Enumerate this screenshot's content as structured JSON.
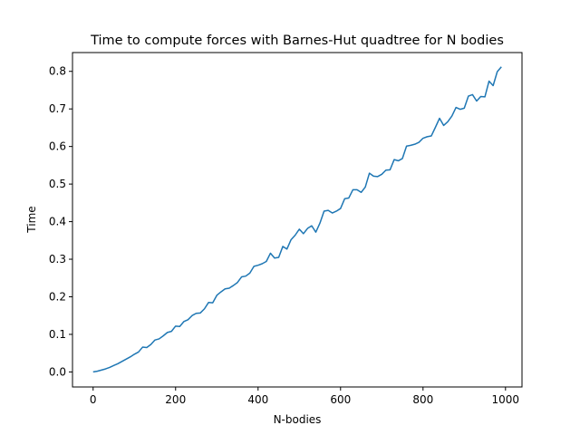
{
  "chart_data": {
    "type": "line",
    "title": "Time to compute forces with Barnes-Hut quadtree for N bodies",
    "xlabel": "N-bodies",
    "ylabel": "Time",
    "xlim": [
      -50,
      1040
    ],
    "ylim": [
      -0.04,
      0.85
    ],
    "grid": false,
    "xticks": [
      0,
      200,
      400,
      600,
      800,
      1000
    ],
    "xtick_labels": [
      "0",
      "200",
      "400",
      "600",
      "800",
      "1000"
    ],
    "yticks": [
      0.0,
      0.1,
      0.2,
      0.3,
      0.4,
      0.5,
      0.6,
      0.7,
      0.8
    ],
    "ytick_labels": [
      "0.0",
      "0.1",
      "0.2",
      "0.3",
      "0.4",
      "0.5",
      "0.6",
      "0.7",
      "0.8"
    ],
    "series": [
      {
        "name": "Time",
        "color": "#1f77b4",
        "x": [
          0,
          10,
          20,
          30,
          40,
          50,
          60,
          70,
          80,
          90,
          100,
          110,
          120,
          130,
          140,
          150,
          160,
          170,
          180,
          190,
          200,
          210,
          220,
          230,
          240,
          250,
          260,
          270,
          280,
          290,
          300,
          310,
          320,
          330,
          340,
          350,
          360,
          370,
          380,
          390,
          400,
          410,
          420,
          430,
          440,
          450,
          460,
          470,
          480,
          490,
          500,
          510,
          520,
          530,
          540,
          550,
          560,
          570,
          580,
          590,
          600,
          610,
          620,
          630,
          640,
          650,
          660,
          670,
          680,
          690,
          700,
          710,
          720,
          730,
          740,
          750,
          760,
          770,
          780,
          790,
          800,
          810,
          820,
          830,
          840,
          850,
          860,
          870,
          880,
          890,
          900,
          910,
          920,
          930,
          940,
          950,
          960,
          970,
          980,
          990
        ],
        "values": [
          0.0,
          0.002,
          0.005,
          0.008,
          0.012,
          0.017,
          0.022,
          0.028,
          0.034,
          0.04,
          0.047,
          0.053,
          0.066,
          0.065,
          0.073,
          0.085,
          0.088,
          0.096,
          0.105,
          0.108,
          0.122,
          0.121,
          0.134,
          0.139,
          0.15,
          0.156,
          0.157,
          0.168,
          0.185,
          0.184,
          0.204,
          0.213,
          0.221,
          0.223,
          0.23,
          0.238,
          0.253,
          0.255,
          0.263,
          0.281,
          0.284,
          0.288,
          0.294,
          0.316,
          0.303,
          0.305,
          0.334,
          0.327,
          0.352,
          0.364,
          0.38,
          0.368,
          0.382,
          0.389,
          0.372,
          0.396,
          0.428,
          0.43,
          0.423,
          0.428,
          0.435,
          0.461,
          0.463,
          0.485,
          0.485,
          0.478,
          0.492,
          0.529,
          0.521,
          0.52,
          0.526,
          0.537,
          0.538,
          0.565,
          0.562,
          0.568,
          0.601,
          0.603,
          0.606,
          0.611,
          0.622,
          0.626,
          0.628,
          0.651,
          0.675,
          0.656,
          0.666,
          0.681,
          0.704,
          0.699,
          0.702,
          0.734,
          0.738,
          0.721,
          0.733,
          0.732,
          0.774,
          0.762,
          0.799,
          0.812
        ]
      }
    ]
  }
}
